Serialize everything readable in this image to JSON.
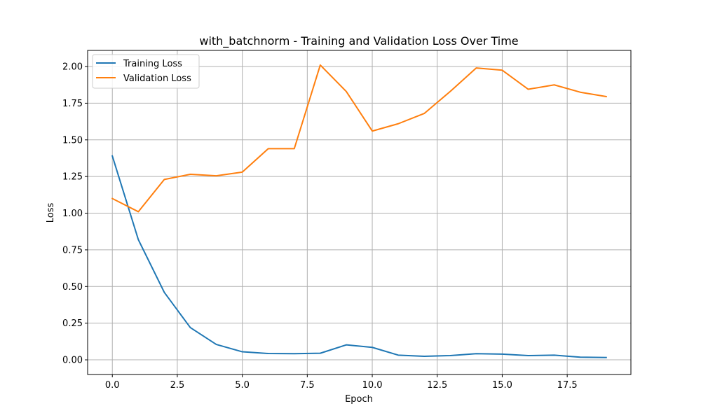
{
  "chart_data": {
    "type": "line",
    "title": "with_batchnorm - Training and Validation Loss Over Time",
    "xlabel": "Epoch",
    "ylabel": "Loss",
    "x": [
      0,
      1,
      2,
      3,
      4,
      5,
      6,
      7,
      8,
      9,
      10,
      11,
      12,
      13,
      14,
      15,
      16,
      17,
      18,
      19
    ],
    "xlim": [
      -0.95,
      19.95
    ],
    "ylim": [
      -0.1,
      2.11
    ],
    "x_ticks": [
      0.0,
      2.5,
      5.0,
      7.5,
      10.0,
      12.5,
      15.0,
      17.5
    ],
    "x_tick_labels": [
      "0.0",
      "2.5",
      "5.0",
      "7.5",
      "10.0",
      "12.5",
      "15.0",
      "17.5"
    ],
    "y_ticks": [
      0.0,
      0.25,
      0.5,
      0.75,
      1.0,
      1.25,
      1.5,
      1.75,
      2.0
    ],
    "y_tick_labels": [
      "0.00",
      "0.25",
      "0.50",
      "0.75",
      "1.00",
      "1.25",
      "1.50",
      "1.75",
      "2.00"
    ],
    "grid": true,
    "legend_position": "top-left",
    "series": [
      {
        "name": "Training Loss",
        "color": "#1f77b4",
        "values": [
          1.39,
          0.82,
          0.46,
          0.22,
          0.105,
          0.055,
          0.043,
          0.042,
          0.045,
          0.102,
          0.085,
          0.032,
          0.024,
          0.029,
          0.042,
          0.039,
          0.029,
          0.032,
          0.018,
          0.016
        ]
      },
      {
        "name": "Validation Loss",
        "color": "#ff7f0e",
        "values": [
          1.1,
          1.01,
          1.23,
          1.265,
          1.255,
          1.28,
          1.44,
          1.44,
          2.01,
          1.83,
          1.56,
          1.61,
          1.68,
          1.83,
          1.99,
          1.975,
          1.845,
          1.875,
          1.825,
          1.795
        ]
      }
    ]
  }
}
